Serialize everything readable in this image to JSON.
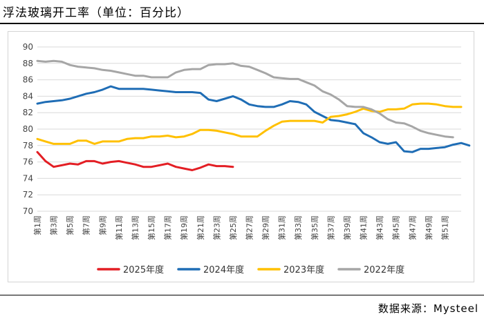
{
  "title": "浮法玻璃开工率（单位：百分比）",
  "source": "数据来源：Mysteel",
  "chart_data": {
    "type": "line",
    "xlabel": "",
    "ylabel": "",
    "ylim": [
      70,
      90
    ],
    "yticks": [
      70,
      72,
      74,
      76,
      78,
      80,
      82,
      84,
      86,
      88,
      90
    ],
    "x_tick_labels": [
      "第1周",
      "第3周",
      "第5周",
      "第7周",
      "第9周",
      "第11周",
      "第13周",
      "第15周",
      "第17周",
      "第19周",
      "第21周",
      "第23周",
      "第25周",
      "第27周",
      "第29周",
      "第31周",
      "第33周",
      "第35周",
      "第37周",
      "第39周",
      "第41周",
      "第43周",
      "第45周",
      "第47周",
      "第49周",
      "第51周"
    ],
    "x_tick_weeks": [
      1,
      3,
      5,
      7,
      9,
      11,
      13,
      15,
      17,
      19,
      21,
      23,
      25,
      27,
      29,
      31,
      33,
      35,
      37,
      39,
      41,
      43,
      45,
      47,
      49,
      51
    ],
    "x_range": [
      1,
      53
    ],
    "grid": "horizontal",
    "legend_position": "bottom",
    "series": [
      {
        "name": "2025年度",
        "color": "#e31e24",
        "values": [
          77.2,
          76.1,
          75.4,
          75.6,
          75.8,
          75.7,
          76.1,
          76.1,
          75.8,
          76.0,
          76.1,
          75.9,
          75.7,
          75.4,
          75.4,
          75.6,
          75.8,
          75.4,
          75.2,
          75.0,
          75.3,
          75.7,
          75.5,
          75.5,
          75.4
        ]
      },
      {
        "name": "2024年度",
        "color": "#1f6db5",
        "values": [
          83.1,
          83.3,
          83.4,
          83.5,
          83.7,
          84.0,
          84.3,
          84.5,
          84.8,
          85.2,
          84.9,
          84.9,
          84.9,
          84.9,
          84.8,
          84.7,
          84.6,
          84.5,
          84.5,
          84.5,
          84.4,
          83.6,
          83.4,
          83.7,
          84.0,
          83.6,
          83.0,
          82.8,
          82.7,
          82.7,
          83.0,
          83.4,
          83.3,
          83.0,
          82.1,
          81.6,
          81.1,
          81.0,
          80.8,
          80.6,
          79.5,
          79.0,
          78.4,
          78.2,
          78.4,
          77.3,
          77.2,
          77.6,
          77.6,
          77.7,
          77.8,
          78.1,
          78.3,
          78.0
        ]
      },
      {
        "name": "2023年度",
        "color": "#ffc000",
        "values": [
          78.8,
          78.5,
          78.2,
          78.2,
          78.2,
          78.6,
          78.6,
          78.2,
          78.5,
          78.5,
          78.5,
          78.8,
          78.9,
          78.9,
          79.1,
          79.1,
          79.2,
          79.0,
          79.1,
          79.4,
          79.9,
          79.9,
          79.8,
          79.6,
          79.4,
          79.1,
          79.1,
          79.1,
          79.8,
          80.4,
          80.9,
          81.0,
          81.0,
          81.0,
          81.0,
          80.8,
          81.5,
          81.6,
          81.8,
          82.1,
          82.5,
          82.2,
          82.1,
          82.4,
          82.4,
          82.5,
          83.0,
          83.1,
          83.1,
          83.0,
          82.8,
          82.7,
          82.7
        ]
      },
      {
        "name": "2022年度",
        "color": "#a6a6a6",
        "values": [
          88.3,
          88.2,
          88.3,
          88.2,
          87.8,
          87.6,
          87.5,
          87.4,
          87.2,
          87.1,
          86.9,
          86.7,
          86.5,
          86.5,
          86.3,
          86.3,
          86.3,
          86.9,
          87.2,
          87.3,
          87.3,
          87.8,
          87.9,
          87.9,
          88.0,
          87.7,
          87.6,
          87.2,
          86.8,
          86.3,
          86.2,
          86.1,
          86.1,
          85.7,
          85.3,
          84.6,
          84.2,
          83.6,
          82.8,
          82.7,
          82.7,
          82.4,
          81.9,
          81.2,
          80.8,
          80.7,
          80.3,
          79.8,
          79.5,
          79.3,
          79.1,
          79.0
        ]
      }
    ]
  }
}
